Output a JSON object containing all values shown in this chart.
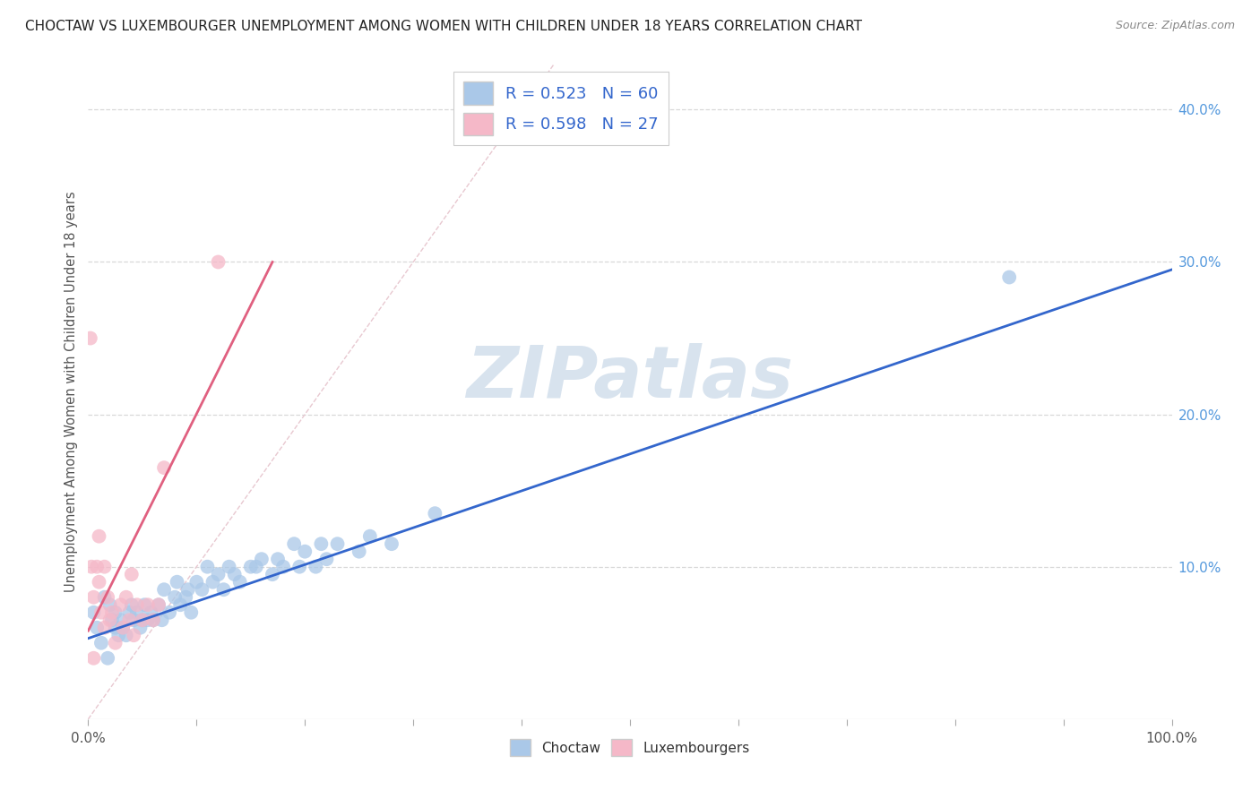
{
  "title": "CHOCTAW VS LUXEMBOURGER UNEMPLOYMENT AMONG WOMEN WITH CHILDREN UNDER 18 YEARS CORRELATION CHART",
  "source": "Source: ZipAtlas.com",
  "ylabel": "Unemployment Among Women with Children Under 18 years",
  "xlabel_ticks": [
    "0.0%",
    "",
    "",
    "",
    "",
    "",
    "",
    "",
    "",
    "100.0%"
  ],
  "ylabel_ticks": [
    "40.0%",
    "30.0%",
    "20.0%",
    "10.0%",
    ""
  ],
  "xlim": [
    0.0,
    1.0
  ],
  "ylim": [
    0.0,
    0.43
  ],
  "choctaw_R": 0.523,
  "choctaw_N": 60,
  "luxembourger_R": 0.598,
  "luxembourger_N": 27,
  "choctaw_color": "#aac8e8",
  "luxembourger_color": "#f5b8c8",
  "choctaw_line_color": "#3366cc",
  "luxembourger_line_color": "#e06080",
  "diagonal_color": "#e8c8d0",
  "background_color": "#ffffff",
  "grid_color": "#d8d8d8",
  "watermark_color": "#c8d8e8",
  "choctaw_x": [
    0.005,
    0.008,
    0.012,
    0.015,
    0.018,
    0.02,
    0.022,
    0.025,
    0.025,
    0.028,
    0.03,
    0.032,
    0.035,
    0.038,
    0.04,
    0.042,
    0.045,
    0.048,
    0.05,
    0.052,
    0.055,
    0.058,
    0.06,
    0.065,
    0.068,
    0.07,
    0.075,
    0.08,
    0.082,
    0.085,
    0.09,
    0.092,
    0.095,
    0.1,
    0.105,
    0.11,
    0.115,
    0.12,
    0.125,
    0.13,
    0.135,
    0.14,
    0.15,
    0.155,
    0.16,
    0.17,
    0.175,
    0.18,
    0.19,
    0.195,
    0.2,
    0.21,
    0.215,
    0.22,
    0.23,
    0.25,
    0.26,
    0.28,
    0.32,
    0.85
  ],
  "choctaw_y": [
    0.07,
    0.06,
    0.05,
    0.08,
    0.04,
    0.075,
    0.065,
    0.06,
    0.07,
    0.055,
    0.065,
    0.06,
    0.055,
    0.07,
    0.075,
    0.065,
    0.07,
    0.06,
    0.065,
    0.075,
    0.065,
    0.07,
    0.065,
    0.075,
    0.065,
    0.085,
    0.07,
    0.08,
    0.09,
    0.075,
    0.08,
    0.085,
    0.07,
    0.09,
    0.085,
    0.1,
    0.09,
    0.095,
    0.085,
    0.1,
    0.095,
    0.09,
    0.1,
    0.1,
    0.105,
    0.095,
    0.105,
    0.1,
    0.115,
    0.1,
    0.11,
    0.1,
    0.115,
    0.105,
    0.115,
    0.11,
    0.12,
    0.115,
    0.135,
    0.29
  ],
  "luxembourger_x": [
    0.002,
    0.003,
    0.005,
    0.005,
    0.008,
    0.01,
    0.01,
    0.012,
    0.015,
    0.015,
    0.018,
    0.02,
    0.022,
    0.025,
    0.03,
    0.032,
    0.035,
    0.038,
    0.04,
    0.042,
    0.045,
    0.05,
    0.055,
    0.06,
    0.065,
    0.07,
    0.12
  ],
  "luxembourger_y": [
    0.25,
    0.1,
    0.08,
    0.04,
    0.1,
    0.09,
    0.12,
    0.07,
    0.1,
    0.06,
    0.08,
    0.065,
    0.07,
    0.05,
    0.075,
    0.06,
    0.08,
    0.065,
    0.095,
    0.055,
    0.075,
    0.065,
    0.075,
    0.065,
    0.075,
    0.165,
    0.3
  ],
  "choctaw_line_x": [
    0.0,
    1.0
  ],
  "choctaw_line_y": [
    0.053,
    0.295
  ],
  "luxembourger_line_x": [
    0.0,
    0.17
  ],
  "luxembourger_line_y": [
    0.058,
    0.3
  ],
  "diagonal_line_x": [
    0.0,
    0.43
  ],
  "diagonal_line_y": [
    0.0,
    0.43
  ]
}
